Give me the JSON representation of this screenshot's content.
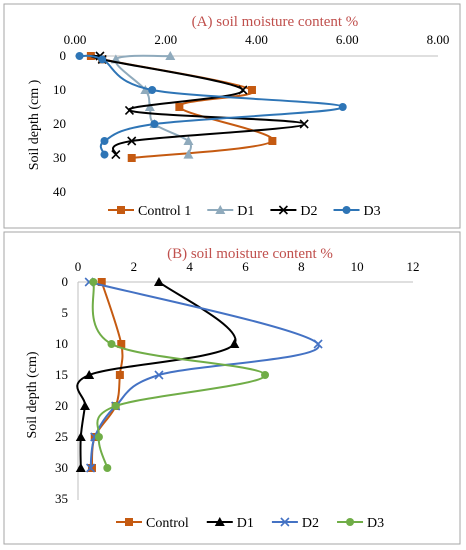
{
  "colors": {
    "Control": "#c55a11",
    "D1": "#7f9fb5",
    "D2": "#e3c511",
    "D3": "#2e75b6",
    "title": "#c0504d"
  },
  "chart_data": [
    {
      "type": "line",
      "title": "(A) soil moisture content %",
      "xlabel": "",
      "ylabel": "Soil depth (cm )",
      "xlim": [
        0,
        8
      ],
      "ylim": [
        0,
        40
      ],
      "y_reversed": true,
      "x_ticks": [
        "0.00",
        "2.00",
        "4.00",
        "6.00",
        "8.00"
      ],
      "y_ticks": [
        "0",
        "10",
        "20",
        "30",
        "40"
      ],
      "legend_position": "bottom",
      "series": [
        {
          "name": "Control 1",
          "color": "#c55a11",
          "marker": "square",
          "points": [
            [
              0.35,
              0
            ],
            [
              0.6,
              1
            ],
            [
              3.9,
              10
            ],
            [
              2.3,
              15
            ],
            [
              4.35,
              25
            ],
            [
              1.25,
              30
            ]
          ]
        },
        {
          "name": "D1",
          "color": "#8faabc",
          "marker": "triangle",
          "points": [
            [
              2.1,
              0
            ],
            [
              0.9,
              1
            ],
            [
              1.55,
              10
            ],
            [
              1.65,
              15
            ],
            [
              1.75,
              20
            ],
            [
              2.5,
              25
            ],
            [
              2.5,
              29
            ]
          ]
        },
        {
          "name": "D2",
          "color": "#000000",
          "marker": "x",
          "points": [
            [
              0.55,
              0
            ],
            [
              0.6,
              1
            ],
            [
              3.7,
              10
            ],
            [
              1.2,
              16
            ],
            [
              5.05,
              20
            ],
            [
              1.25,
              25
            ],
            [
              0.9,
              29
            ]
          ]
        },
        {
          "name": "D3",
          "color": "#2e75b6",
          "marker": "circle",
          "points": [
            [
              0.1,
              0
            ],
            [
              0.6,
              1
            ],
            [
              1.7,
              10
            ],
            [
              5.9,
              15
            ],
            [
              1.75,
              20
            ],
            [
              0.65,
              25
            ],
            [
              0.65,
              29
            ]
          ]
        }
      ]
    },
    {
      "type": "line",
      "title": "(B) soil moisture content %",
      "xlabel": "",
      "ylabel": "Soil depth (cm)",
      "xlim": [
        0,
        12
      ],
      "ylim": [
        0,
        35
      ],
      "y_reversed": true,
      "x_ticks": [
        "0",
        "2",
        "4",
        "6",
        "8",
        "10",
        "12"
      ],
      "y_ticks": [
        "0",
        "5",
        "10",
        "15",
        "20",
        "25",
        "30",
        "35"
      ],
      "legend_position": "bottom",
      "series": [
        {
          "name": "Control",
          "color": "#c55a11",
          "marker": "square",
          "points": [
            [
              0.85,
              0
            ],
            [
              1.55,
              10
            ],
            [
              1.5,
              15
            ],
            [
              1.35,
              20
            ],
            [
              0.6,
              25
            ],
            [
              0.5,
              30
            ]
          ]
        },
        {
          "name": "D1",
          "color": "#000000",
          "marker": "triangle",
          "points": [
            [
              2.9,
              0
            ],
            [
              5.6,
              10
            ],
            [
              0.4,
              15
            ],
            [
              0.25,
              20
            ],
            [
              0.1,
              25
            ],
            [
              0.1,
              30
            ]
          ]
        },
        {
          "name": "D2",
          "color": "#4472c4",
          "marker": "x",
          "points": [
            [
              0.4,
              0
            ],
            [
              8.6,
              10
            ],
            [
              2.9,
              15
            ],
            [
              1.35,
              20
            ],
            [
              0.6,
              25
            ],
            [
              0.45,
              30
            ]
          ]
        },
        {
          "name": "D3",
          "color": "#70ad47",
          "marker": "circle",
          "points": [
            [
              0.55,
              0
            ],
            [
              1.2,
              10
            ],
            [
              6.7,
              15
            ],
            [
              1.35,
              20
            ],
            [
              0.75,
              25
            ],
            [
              1.05,
              30
            ]
          ]
        }
      ]
    }
  ]
}
